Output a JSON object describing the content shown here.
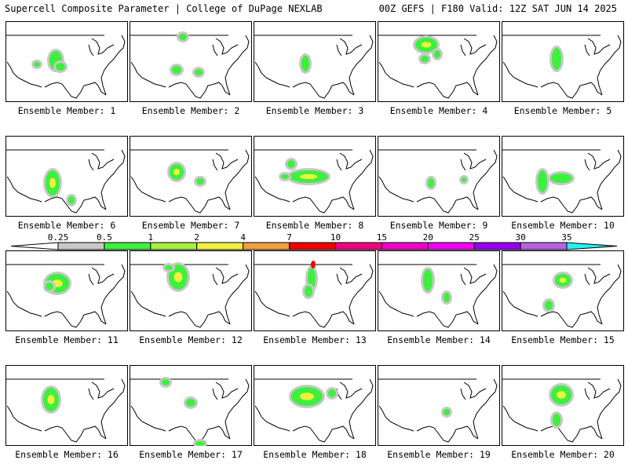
{
  "header": {
    "title": "Supercell Composite Parameter | College of DuPage NEXLAB",
    "run_info": "00Z GEFS | F180 Valid: 12Z SAT JUN 14 2025"
  },
  "members": [
    {
      "label": "Ensemble Member: 1"
    },
    {
      "label": "Ensemble Member: 2"
    },
    {
      "label": "Ensemble Member: 3"
    },
    {
      "label": "Ensemble Member: 4"
    },
    {
      "label": "Ensemble Member: 5"
    },
    {
      "label": "Ensemble Member: 6"
    },
    {
      "label": "Ensemble Member: 7"
    },
    {
      "label": "Ensemble Member: 8"
    },
    {
      "label": "Ensemble Member: 9"
    },
    {
      "label": "Ensemble Member: 10"
    },
    {
      "label": "Ensemble Member: 11"
    },
    {
      "label": "Ensemble Member: 12"
    },
    {
      "label": "Ensemble Member: 13"
    },
    {
      "label": "Ensemble Member: 14"
    },
    {
      "label": "Ensemble Member: 15"
    },
    {
      "label": "Ensemble Member: 16"
    },
    {
      "label": "Ensemble Member: 17"
    },
    {
      "label": "Ensemble Member: 18"
    },
    {
      "label": "Ensemble Member: 19"
    },
    {
      "label": "Ensemble Member: 20"
    }
  ],
  "color_scale": {
    "labels": [
      "0.25",
      "0.5",
      "1",
      "2",
      "4",
      "7",
      "10",
      "15",
      "20",
      "25",
      "30",
      "35"
    ],
    "colors": [
      "#c8c8c8",
      "#3ef03e",
      "#a6f03e",
      "#f0f03e",
      "#f0a03e",
      "#f00000",
      "#f0007e",
      "#f000c8",
      "#f000f0",
      "#9600f0",
      "#b464e0",
      "#28f0f0"
    ]
  }
}
